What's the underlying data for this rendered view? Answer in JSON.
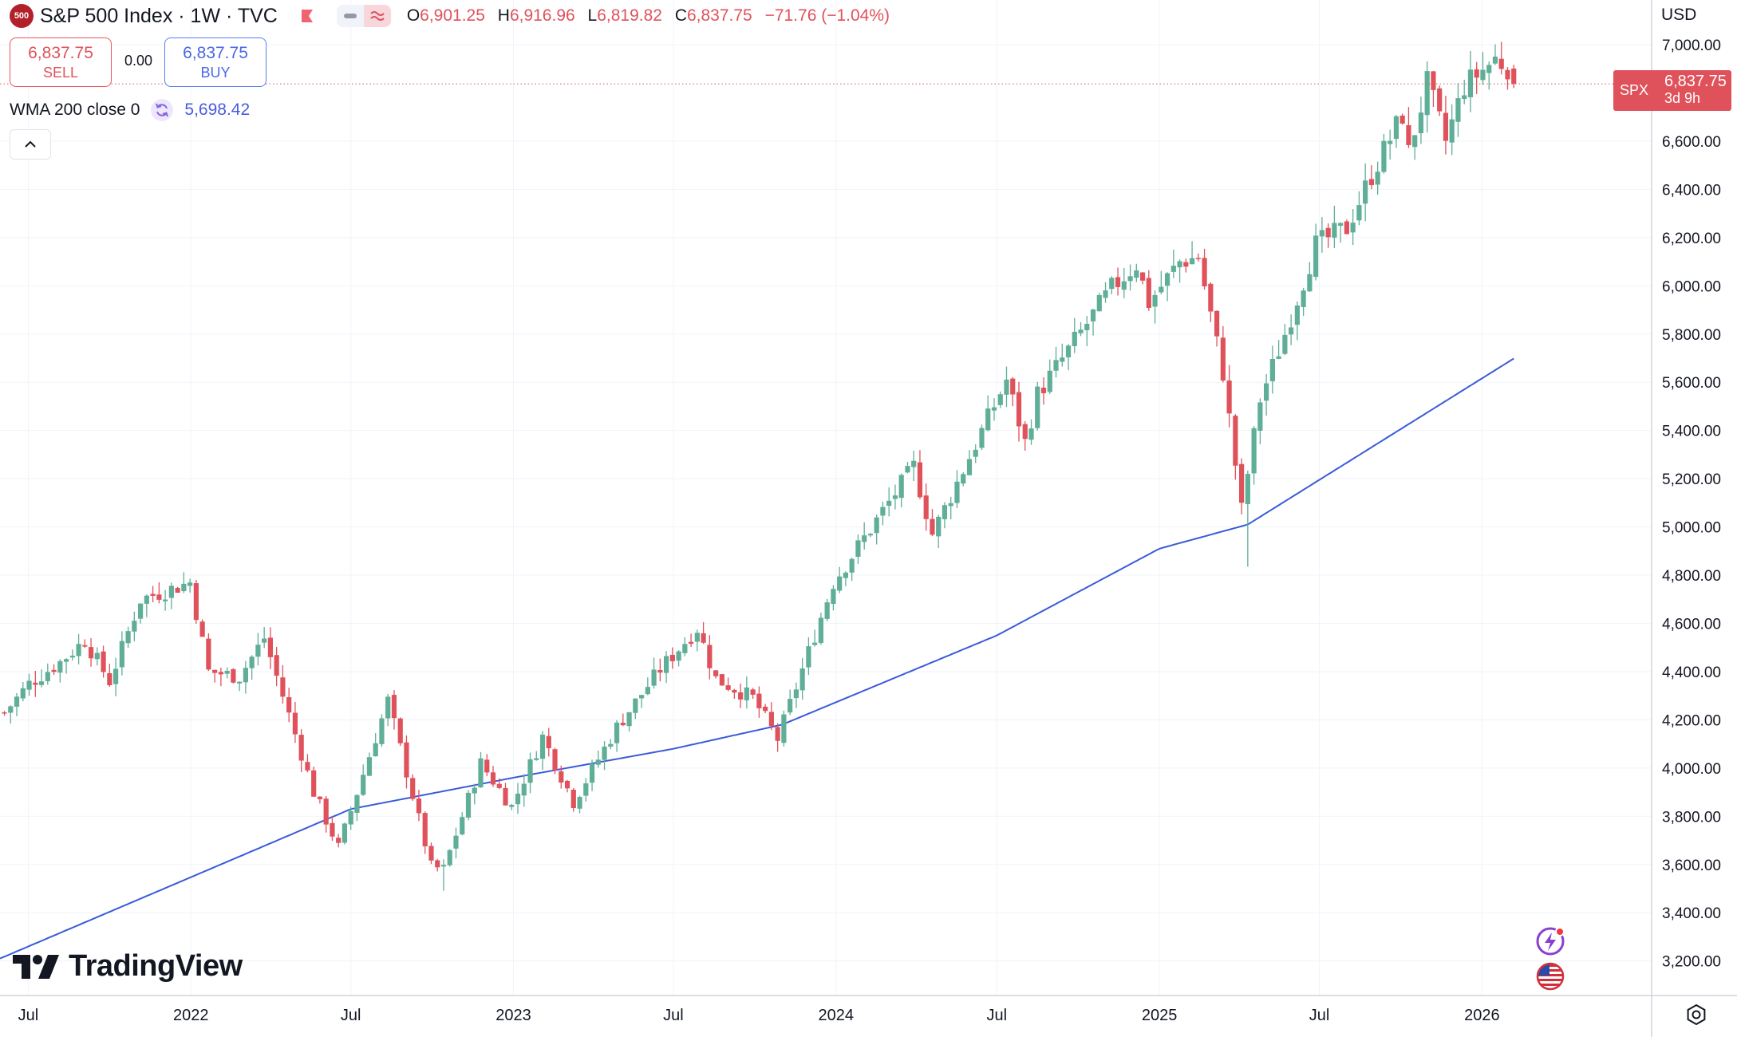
{
  "header": {
    "symbol_badge": "500",
    "title": "S&P 500 Index · 1W · TVC",
    "ohlc": {
      "o_label": "O",
      "o_value": "6,901.25",
      "h_label": "H",
      "h_value": "6,916.96",
      "l_label": "L",
      "l_value": "6,819.82",
      "c_label": "C",
      "c_value": "6,837.75",
      "change": "−71.76 (−1.04%)"
    },
    "icons": [
      "flag-icon",
      "minus-pill-icon",
      "wave-pill-icon"
    ]
  },
  "trade": {
    "sell_price": "6,837.75",
    "sell_label": "SELL",
    "spread": "0.00",
    "buy_price": "6,837.75",
    "buy_label": "BUY"
  },
  "indicator": {
    "name": "WMA 200 close 0",
    "value": "5,698.42",
    "icon": "refresh-icon",
    "color": "#4a5be0"
  },
  "price_scale": {
    "currency": "USD",
    "last_symbol": "SPX",
    "last_price": "6,837.75",
    "countdown": "3d 9h",
    "last_color": "#e0525b"
  },
  "branding": {
    "logo_text": "TradingView"
  },
  "colors": {
    "up": "#5fae97",
    "down": "#e0525b",
    "wma": "#3a5bd9",
    "grid": "#f0f3fa",
    "text": "#131722"
  },
  "chart_data": {
    "type": "candlestick",
    "title": "S&P 500 Index · 1W · TVC",
    "interval": "1W",
    "y_ticks": [
      3200,
      3400,
      3600,
      3800,
      4000,
      4200,
      4400,
      4600,
      4800,
      5000,
      5200,
      5400,
      5600,
      5800,
      6000,
      6200,
      6400,
      6600,
      7000
    ],
    "y_tick_labels": [
      "3,200.00",
      "3,400.00",
      "3,600.00",
      "3,800.00",
      "4,000.00",
      "4,200.00",
      "4,400.00",
      "4,600.00",
      "4,800.00",
      "5,000.00",
      "5,200.00",
      "5,400.00",
      "5,600.00",
      "5,800.00",
      "6,000.00",
      "6,200.00",
      "6,400.00",
      "6,600.00",
      "7,000.00"
    ],
    "ylim": [
      3050,
      7020
    ],
    "x_ticks": [
      {
        "date": "2021-07-01",
        "label": "Jul"
      },
      {
        "date": "2022-01-01",
        "label": "2022"
      },
      {
        "date": "2022-07-01",
        "label": "Jul"
      },
      {
        "date": "2023-01-01",
        "label": "2023"
      },
      {
        "date": "2023-07-01",
        "label": "Jul"
      },
      {
        "date": "2024-01-01",
        "label": "2024"
      },
      {
        "date": "2024-07-01",
        "label": "Jul"
      },
      {
        "date": "2025-01-01",
        "label": "2025"
      },
      {
        "date": "2025-07-01",
        "label": "Jul"
      },
      {
        "date": "2026-01-01",
        "label": "2026"
      }
    ],
    "xlim": [
      "2021-05-30",
      "2026-07-12"
    ],
    "grid": true,
    "close_anchors": [
      [
        "2021-06-04",
        4230
      ],
      [
        "2021-07-02",
        4350
      ],
      [
        "2021-08-06",
        4440
      ],
      [
        "2021-09-03",
        4530
      ],
      [
        "2021-10-01",
        4360
      ],
      [
        "2021-11-05",
        4700
      ],
      [
        "2021-12-31",
        4770
      ],
      [
        "2022-01-21",
        4400
      ],
      [
        "2022-02-25",
        4380
      ],
      [
        "2022-03-25",
        4540
      ],
      [
        "2022-04-29",
        4140
      ],
      [
        "2022-05-20",
        3900
      ],
      [
        "2022-06-17",
        3670
      ],
      [
        "2022-08-12",
        4280
      ],
      [
        "2022-09-30",
        3590
      ],
      [
        "2022-10-14",
        3580
      ],
      [
        "2022-11-25",
        4020
      ],
      [
        "2022-12-30",
        3840
      ],
      [
        "2023-02-03",
        4130
      ],
      [
        "2023-03-10",
        3860
      ],
      [
        "2023-04-28",
        4170
      ],
      [
        "2023-06-16",
        4410
      ],
      [
        "2023-07-28",
        4580
      ],
      [
        "2023-08-18",
        4370
      ],
      [
        "2023-09-29",
        4290
      ],
      [
        "2023-10-27",
        4120
      ],
      [
        "2023-12-29",
        4770
      ],
      [
        "2024-03-29",
        5250
      ],
      [
        "2024-04-19",
        4970
      ],
      [
        "2024-07-12",
        5610
      ],
      [
        "2024-08-02",
        5350
      ],
      [
        "2024-08-16",
        5550
      ],
      [
        "2024-11-08",
        5990
      ],
      [
        "2024-12-06",
        6090
      ],
      [
        "2024-12-20",
        5930
      ],
      [
        "2025-01-24",
        6100
      ],
      [
        "2025-02-14",
        6120
      ],
      [
        "2025-03-14",
        5640
      ],
      [
        "2025-04-04",
        5070
      ],
      [
        "2025-04-25",
        5530
      ],
      [
        "2025-05-23",
        5800
      ],
      [
        "2025-06-27",
        6170
      ],
      [
        "2025-08-01",
        6240
      ],
      [
        "2025-08-29",
        6460
      ],
      [
        "2025-10-03",
        6710
      ],
      [
        "2025-10-10",
        6550
      ],
      [
        "2025-10-31",
        6840
      ],
      [
        "2025-11-21",
        6600
      ],
      [
        "2025-12-12",
        6830
      ],
      [
        "2026-01-16",
        6940
      ],
      [
        "2026-01-30",
        6909.51
      ],
      [
        "2026-02-06",
        6837.75
      ]
    ],
    "wma_anchors": [
      [
        "2021-05-30",
        3210
      ],
      [
        "2022-07-01",
        3830
      ],
      [
        "2023-01-01",
        3960
      ],
      [
        "2023-07-01",
        4080
      ],
      [
        "2023-11-01",
        4180
      ],
      [
        "2024-07-01",
        4550
      ],
      [
        "2025-01-01",
        4910
      ],
      [
        "2025-04-11",
        5010
      ],
      [
        "2026-02-06",
        5698.42
      ]
    ],
    "last_candle": {
      "date": "2026-02-06",
      "open": 6901.25,
      "high": 6916.96,
      "low": 6819.82,
      "close": 6837.75,
      "change": -71.76,
      "change_pct": -1.04
    },
    "extremes": {
      "low_2022": {
        "date": "2022-10-14",
        "low": 3491
      },
      "low_2025": {
        "date": "2025-04-11",
        "low": 4835
      },
      "high_2026": {
        "date": "2026-01-16",
        "high": 7002
      }
    },
    "last_price_line": 6837.75
  }
}
